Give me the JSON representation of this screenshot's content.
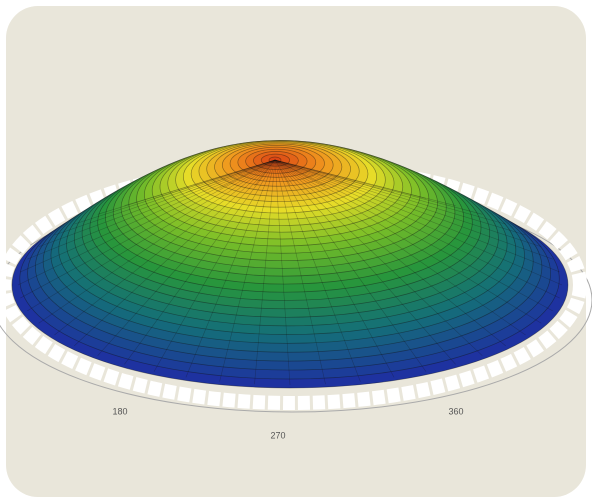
{
  "axis_labels": [
    "180",
    "270",
    "360"
  ]
}
